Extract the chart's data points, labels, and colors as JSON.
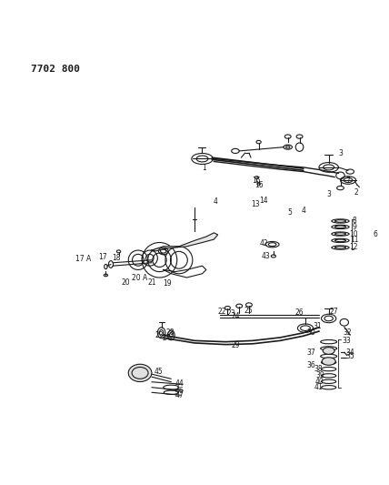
{
  "title": "7702 800",
  "bg_color": "#ffffff",
  "line_color": "#1a1a1a",
  "text_color": "#1a1a1a",
  "figsize": [
    4.28,
    5.33
  ],
  "dpi": 100
}
